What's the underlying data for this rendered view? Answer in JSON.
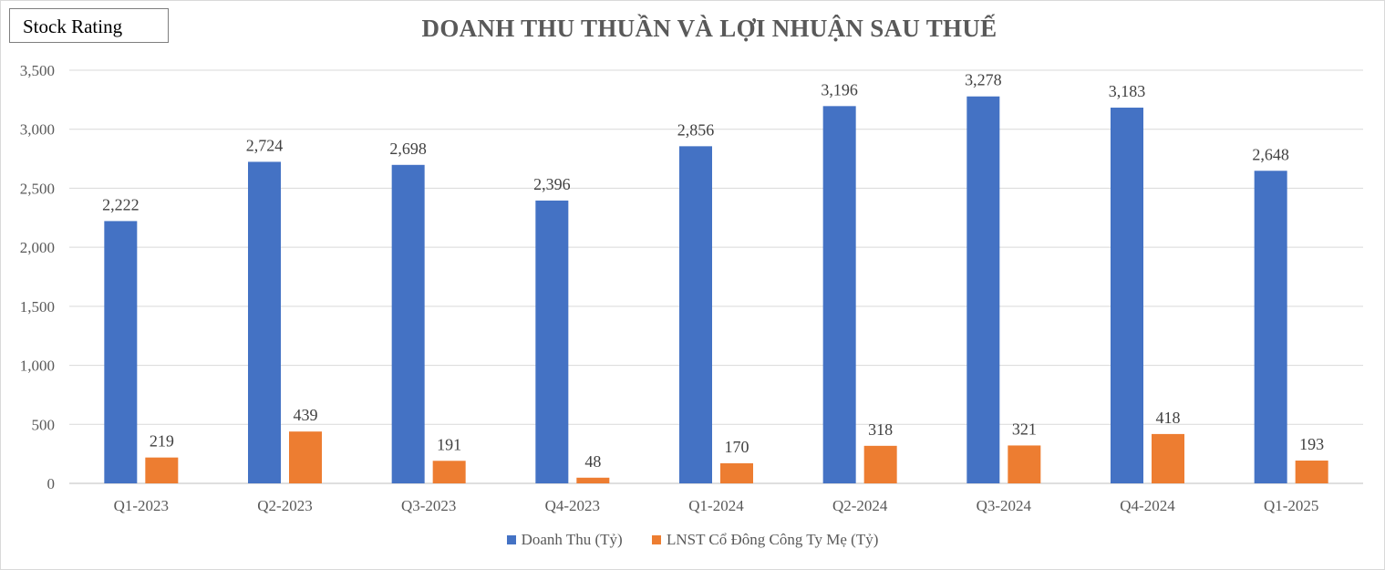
{
  "badge": {
    "label": "Stock Rating"
  },
  "chart_data": {
    "type": "bar",
    "title": "DOANH THU THUẦN VÀ LỢI NHUẬN SAU THUẾ",
    "categories": [
      "Q1-2023",
      "Q2-2023",
      "Q3-2023",
      "Q4-2023",
      "Q1-2024",
      "Q2-2024",
      "Q3-2024",
      "Q4-2024",
      "Q1-2025"
    ],
    "series": [
      {
        "name": "Doanh Thu (Tỷ)",
        "color": "#4472c4",
        "values": [
          2222,
          2724,
          2698,
          2396,
          2856,
          3196,
          3278,
          3183,
          2648
        ]
      },
      {
        "name": "LNST Cổ Đông Công Ty Mẹ (Tỷ)",
        "color": "#ed7d31",
        "values": [
          219,
          439,
          191,
          48,
          170,
          318,
          321,
          418,
          193
        ]
      }
    ],
    "ylim": [
      0,
      3500
    ],
    "yticks": [
      0,
      500,
      1000,
      1500,
      2000,
      2500,
      3000,
      3500
    ],
    "yticks_labels": [
      "0",
      "500",
      "1,000",
      "1,500",
      "2,000",
      "2,500",
      "3,000",
      "3,500"
    ],
    "value_labels": [
      [
        "2,222",
        "2,724",
        "2,698",
        "2,396",
        "2,856",
        "3,196",
        "3,278",
        "3,183",
        "2,648"
      ],
      [
        "219",
        "439",
        "191",
        "48",
        "170",
        "318",
        "321",
        "418",
        "193"
      ]
    ],
    "grid": true,
    "legend_position": "bottom"
  }
}
